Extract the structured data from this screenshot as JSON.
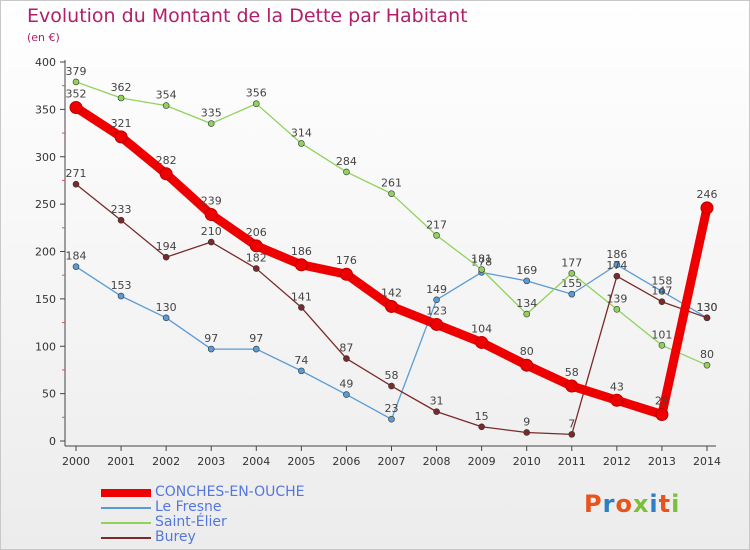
{
  "header": {
    "title": "Evolution du Montant de la Dette par Habitant",
    "unit": "(en €)"
  },
  "logo": {
    "text": "Proxiti",
    "colors": [
      "#e8541c",
      "#2b7fc4",
      "#e8541c",
      "#7bbf3a",
      "#2b7fc4",
      "#e8541c",
      "#7bbf3a"
    ]
  },
  "chart_data": {
    "type": "line",
    "title": "Evolution du Montant de la Dette par Habitant",
    "ylabel": "(en €)",
    "xlabel": "",
    "x": [
      "2000",
      "2001",
      "2002",
      "2003",
      "2004",
      "2005",
      "2006",
      "2007",
      "2008",
      "2009",
      "2010",
      "2011",
      "2012",
      "2013",
      "2014"
    ],
    "ylim": [
      0,
      400
    ],
    "yticks": [
      0,
      50,
      100,
      150,
      200,
      250,
      300,
      350,
      400
    ],
    "grid": false,
    "legend_position": "bottom-left",
    "series": [
      {
        "name": "CONCHES-EN-OUCHE",
        "color": "#ee0000",
        "highlight": true,
        "values": [
          352,
          321,
          282,
          239,
          206,
          186,
          176,
          142,
          123,
          104,
          80,
          58,
          43,
          28,
          246
        ]
      },
      {
        "name": "Le Fresne",
        "color": "#5b9bd5",
        "highlight": false,
        "values": [
          184,
          153,
          130,
          97,
          97,
          74,
          49,
          23,
          149,
          178,
          169,
          155,
          186,
          158,
          130
        ]
      },
      {
        "name": "Saint-Élier",
        "color": "#8fd35a",
        "highlight": false,
        "values": [
          379,
          362,
          354,
          335,
          356,
          314,
          284,
          261,
          217,
          181,
          134,
          177,
          139,
          101,
          80
        ]
      },
      {
        "name": "Burey",
        "color": "#7a2a2a",
        "highlight": false,
        "values": [
          271,
          233,
          194,
          210,
          182,
          141,
          87,
          58,
          31,
          15,
          9,
          7,
          174,
          147,
          130
        ]
      }
    ]
  }
}
